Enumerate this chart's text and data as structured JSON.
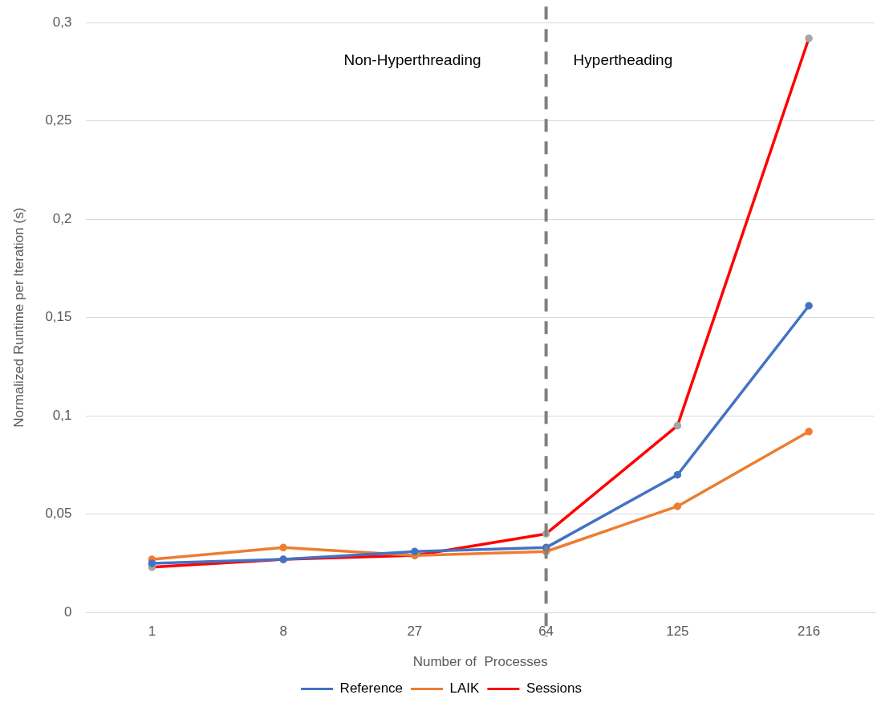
{
  "chart_data": {
    "type": "line",
    "xlabel": "Number of  Processes",
    "ylabel": "Normalized Runtime per Iteration (s)",
    "categories": [
      "1",
      "8",
      "27",
      "64",
      "125",
      "216"
    ],
    "series": [
      {
        "name": "Reference",
        "color": "#4472c4",
        "values": [
          0.025,
          0.027,
          0.031,
          0.033,
          0.07,
          0.156
        ]
      },
      {
        "name": "LAIK",
        "color": "#ed7d31",
        "values": [
          0.027,
          0.033,
          0.029,
          0.031,
          0.054,
          0.092
        ]
      },
      {
        "name": "Sessions",
        "color": "#ff0000",
        "colors": [
          "#a5a5a5",
          "#a5a5a5",
          "#a5a5a5",
          "#a5a5a5",
          "#a5a5a5",
          "#a5a5a5"
        ],
        "values": [
          0.023,
          0.027,
          0.029,
          0.04,
          0.095,
          0.292
        ]
      }
    ],
    "ylim": [
      0,
      0.3
    ],
    "yticks": [
      0,
      {
        "value": 0.05,
        "label": "0,05"
      },
      {
        "value": 0.1,
        "label": "0,1"
      },
      {
        "value": 0.15,
        "label": "0,15"
      },
      {
        "value": 0.2,
        "label": "0,2"
      },
      {
        "value": 0.25,
        "label": "0,25"
      },
      {
        "value": 0.3,
        "label": "0,3"
      }
    ],
    "ref_lines": [
      {
        "axis": "x",
        "value": "64",
        "color": "#808080",
        "line_style": "dashed"
      }
    ],
    "annotations": [
      "Non-Hyperthreading",
      "Hypertheading"
    ],
    "grid": "y",
    "legend": "bottom",
    "marker": "circle",
    "line_style": "solid"
  }
}
